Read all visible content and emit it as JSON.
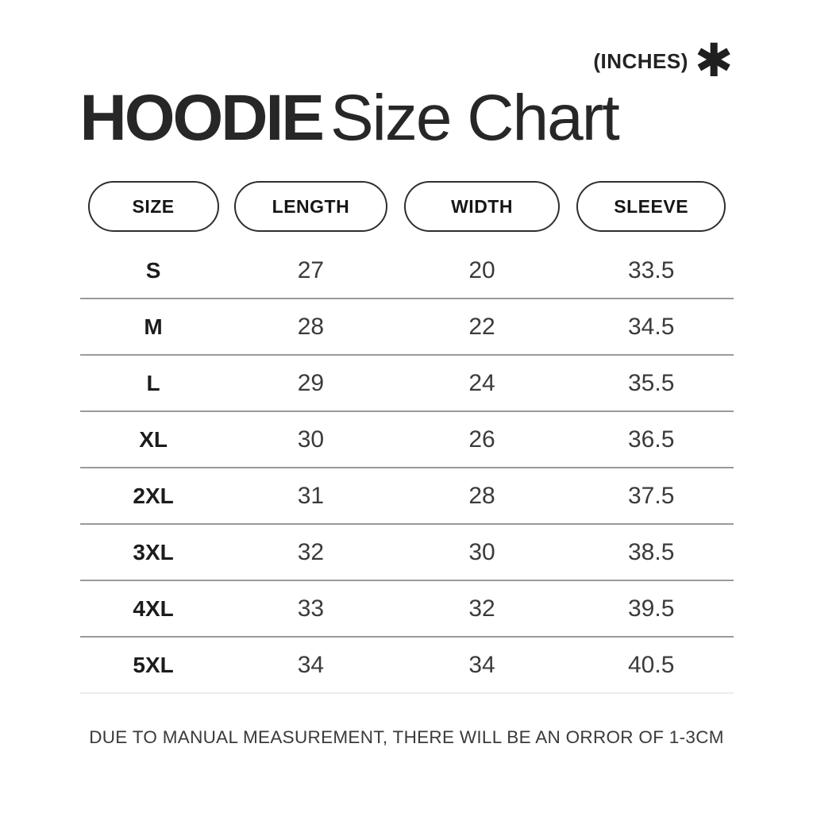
{
  "header": {
    "units_label": "(INCHES)",
    "asterisk_icon": "✱",
    "title_bold": "HOODIE",
    "title_regular": "Size Chart"
  },
  "chart_data": {
    "type": "table",
    "title": "HOODIE Size Chart",
    "units": "INCHES",
    "columns": [
      "SIZE",
      "LENGTH",
      "WIDTH",
      "SLEEVE"
    ],
    "rows": [
      [
        "S",
        "27",
        "20",
        "33.5"
      ],
      [
        "M",
        "28",
        "22",
        "34.5"
      ],
      [
        "L",
        "29",
        "24",
        "35.5"
      ],
      [
        "XL",
        "30",
        "26",
        "36.5"
      ],
      [
        "2XL",
        "31",
        "28",
        "37.5"
      ],
      [
        "3XL",
        "32",
        "30",
        "38.5"
      ],
      [
        "4XL",
        "33",
        "32",
        "39.5"
      ],
      [
        "5XL",
        "34",
        "34",
        "40.5"
      ]
    ],
    "note": "DUE TO MANUAL MEASUREMENT, THERE WILL BE AN ORROR OF 1-3CM"
  },
  "colors": {
    "background": "#ffffff",
    "title_text": "#272727",
    "pill_border": "#2e2e2e",
    "row_divider": "#9a9a9a",
    "last_divider": "#ededed",
    "cell_text": "#3b3b3b"
  }
}
